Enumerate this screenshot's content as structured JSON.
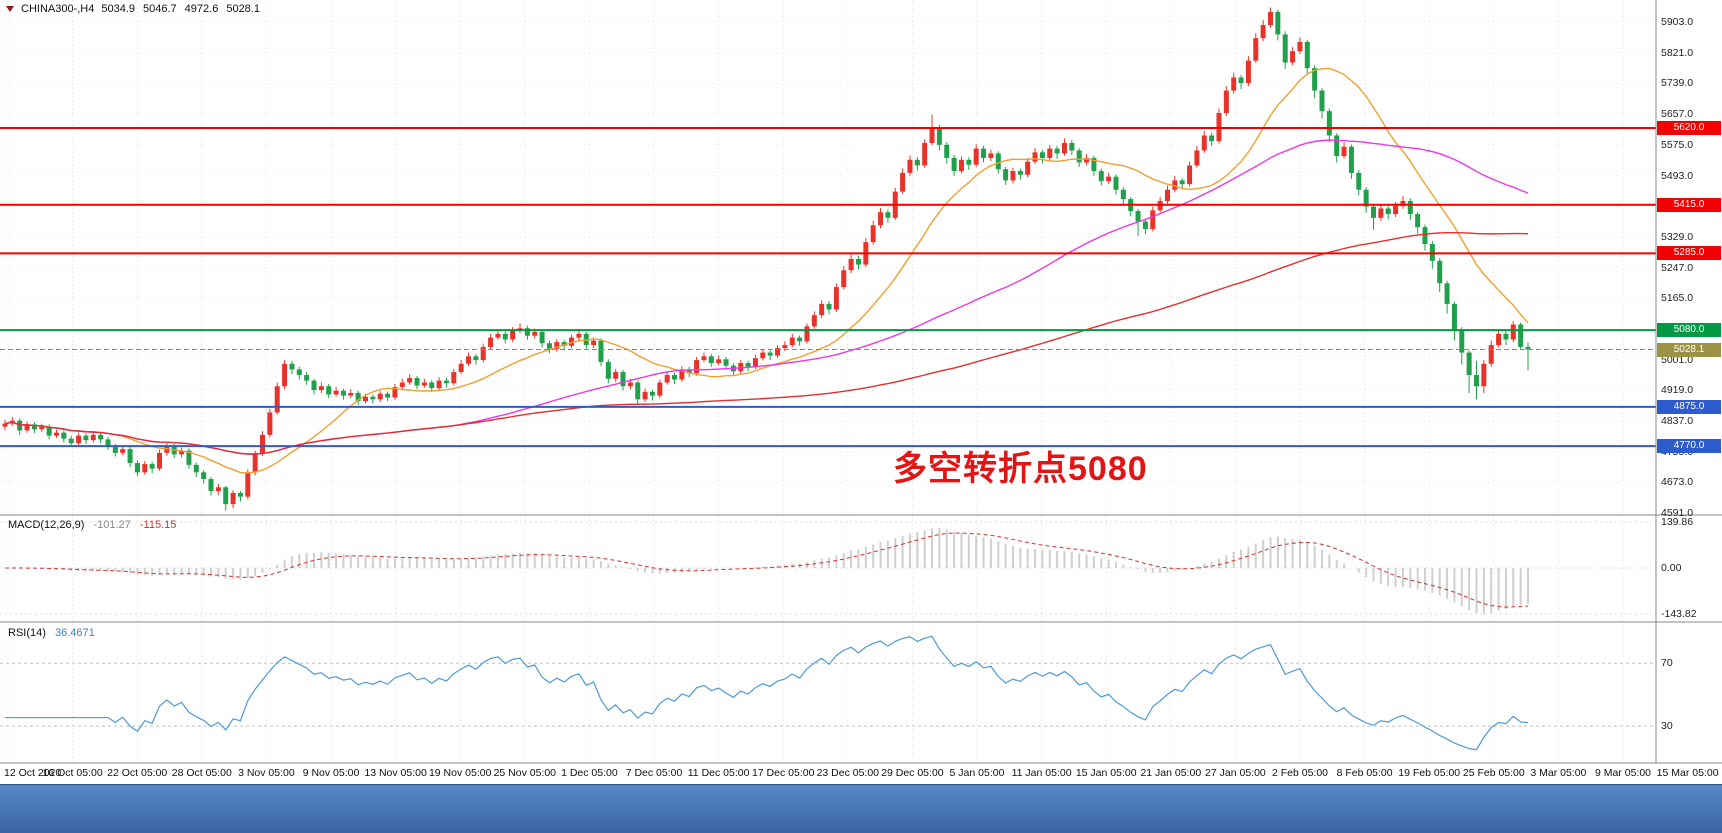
{
  "window": {
    "symbol": "CHINA300-",
    "timeframe": "H4",
    "symbol_label": "CHINA300-,H4",
    "open": "5034.9",
    "high": "5046.7",
    "low": "4972.6",
    "close": "5028.1"
  },
  "annotation": {
    "text": "多空转折点5080",
    "color": "#e21414"
  },
  "main_panel": {
    "axis_labels": [
      "5903.0",
      "5821.0",
      "5739.0",
      "5657.0",
      "5575.0",
      "5493.0",
      "5411.0",
      "5329.0",
      "5247.0",
      "5165.0",
      "5083.0",
      "5001.0",
      "4919.0",
      "4837.0",
      "4755.0",
      "4673.0",
      "4591.0"
    ],
    "levels": [
      {
        "label": "5620.0",
        "value": 5620,
        "color": "#f20000",
        "current": false
      },
      {
        "label": "5415.0",
        "value": 5415,
        "color": "#f20000",
        "current": false
      },
      {
        "label": "5285.0",
        "value": 5285,
        "color": "#f20000",
        "current": false
      },
      {
        "label": "5080.0",
        "value": 5080,
        "color": "#009944",
        "current": false
      },
      {
        "label": "5028.1",
        "value": 5028.1,
        "color": "#9c9246",
        "current": true
      },
      {
        "label": "4875.0",
        "value": 4875,
        "color": "#2e5bcd",
        "current": false
      },
      {
        "label": "4770.0",
        "value": 4770,
        "color": "#2e5bcd",
        "current": false
      }
    ]
  },
  "macd_panel": {
    "label": "MACD(12,26,9)",
    "value_main": "-101.27",
    "value_signal": "-115.15",
    "axis_labels": [
      "139.86",
      "0.00",
      "-143.82"
    ]
  },
  "rsi_panel": {
    "label": "RSI(14)",
    "value": "36.4671",
    "level_labels": [
      "70",
      "30"
    ],
    "level_values": [
      70,
      30
    ]
  },
  "time_axis": [
    "12 Oct 2020",
    "16 Oct 05:00",
    "22 Oct 05:00",
    "28 Oct 05:00",
    "3 Nov 05:00",
    "9 Nov 05:00",
    "13 Nov 05:00",
    "19 Nov 05:00",
    "25 Nov 05:00",
    "1 Dec 05:00",
    "7 Dec 05:00",
    "11 Dec 05:00",
    "17 Dec 05:00",
    "23 Dec 05:00",
    "29 Dec 05:00",
    "5 Jan 05:00",
    "11 Jan 05:00",
    "15 Jan 05:00",
    "21 Jan 05:00",
    "27 Jan 05:00",
    "2 Feb 05:00",
    "8 Feb 05:00",
    "19 Feb 05:00",
    "25 Feb 05:00",
    "3 Mar 05:00",
    "9 Mar 05:00",
    "15 Mar 05:00"
  ],
  "colors": {
    "bull": "#e8332a",
    "bear": "#20a04a",
    "grid": "#e2e2e2",
    "separator": "#8a8a8a",
    "macd_hist": "#cfcfcf",
    "macd_signal": "#d03030",
    "rsi_line": "#4e9ad4",
    "rsi_level": "#c0c0c0",
    "taskbar": "#4a7ab8"
  },
  "chart_data": {
    "type": "candlestick",
    "symbol": "CHINA300-",
    "timeframe": "H4",
    "price_range": [
      4586,
      5962
    ],
    "moving_averages": [
      {
        "name": "ma-fast",
        "period": 16,
        "color": "#f0a030"
      },
      {
        "name": "ma-mid",
        "period": 56,
        "color": "#e838e8"
      },
      {
        "name": "ma-slow",
        "period": 130,
        "color": "#e03030"
      }
    ],
    "indicators": {
      "macd": {
        "fast": 12,
        "slow": 26,
        "signal": 9
      },
      "rsi": {
        "period": 14
      }
    },
    "ohlc": [
      [
        4822,
        4840,
        4812,
        4830
      ],
      [
        4830,
        4848,
        4824,
        4838
      ],
      [
        4838,
        4844,
        4800,
        4812
      ],
      [
        4812,
        4836,
        4806,
        4828
      ],
      [
        4828,
        4834,
        4805,
        4815
      ],
      [
        4815,
        4830,
        4808,
        4822
      ],
      [
        4822,
        4828,
        4788,
        4798
      ],
      [
        4798,
        4814,
        4792,
        4806
      ],
      [
        4806,
        4812,
        4780,
        4790
      ],
      [
        4790,
        4798,
        4768,
        4778
      ],
      [
        4778,
        4806,
        4772,
        4798
      ],
      [
        4798,
        4804,
        4776,
        4786
      ],
      [
        4786,
        4808,
        4780,
        4800
      ],
      [
        4800,
        4806,
        4778,
        4788
      ],
      [
        4788,
        4794,
        4760,
        4770
      ],
      [
        4770,
        4776,
        4742,
        4752
      ],
      [
        4752,
        4770,
        4746,
        4762
      ],
      [
        4762,
        4768,
        4714,
        4725
      ],
      [
        4725,
        4732,
        4690,
        4700
      ],
      [
        4700,
        4730,
        4694,
        4722
      ],
      [
        4722,
        4728,
        4698,
        4710
      ],
      [
        4710,
        4760,
        4704,
        4752
      ],
      [
        4752,
        4780,
        4744,
        4770
      ],
      [
        4770,
        4776,
        4738,
        4748
      ],
      [
        4748,
        4766,
        4740,
        4758
      ],
      [
        4758,
        4764,
        4710,
        4720
      ],
      [
        4720,
        4726,
        4688,
        4700
      ],
      [
        4700,
        4706,
        4670,
        4682
      ],
      [
        4682,
        4688,
        4638,
        4650
      ],
      [
        4650,
        4670,
        4640,
        4660
      ],
      [
        4660,
        4664,
        4598,
        4615
      ],
      [
        4615,
        4652,
        4604,
        4645
      ],
      [
        4645,
        4650,
        4622,
        4635
      ],
      [
        4635,
        4708,
        4628,
        4700
      ],
      [
        4700,
        4758,
        4692,
        4750
      ],
      [
        4750,
        4810,
        4744,
        4800
      ],
      [
        4800,
        4870,
        4794,
        4860
      ],
      [
        4860,
        4940,
        4854,
        4930
      ],
      [
        4930,
        5000,
        4922,
        4990
      ],
      [
        4990,
        4998,
        4962,
        4975
      ],
      [
        4975,
        4982,
        4948,
        4960
      ],
      [
        4960,
        4968,
        4934,
        4945
      ],
      [
        4945,
        4950,
        4908,
        4920
      ],
      [
        4920,
        4940,
        4912,
        4930
      ],
      [
        4930,
        4936,
        4898,
        4908
      ],
      [
        4908,
        4928,
        4902,
        4918
      ],
      [
        4918,
        4924,
        4894,
        4905
      ],
      [
        4905,
        4922,
        4898,
        4912
      ],
      [
        4912,
        4918,
        4880,
        4890
      ],
      [
        4890,
        4910,
        4884,
        4902
      ],
      [
        4902,
        4908,
        4884,
        4895
      ],
      [
        4895,
        4918,
        4888,
        4910
      ],
      [
        4910,
        4916,
        4890,
        4900
      ],
      [
        4900,
        4936,
        4894,
        4928
      ],
      [
        4928,
        4950,
        4922,
        4940
      ],
      [
        4940,
        4962,
        4934,
        4952
      ],
      [
        4952,
        4958,
        4922,
        4932
      ],
      [
        4932,
        4950,
        4926,
        4940
      ],
      [
        4940,
        4946,
        4914,
        4925
      ],
      [
        4925,
        4954,
        4918,
        4945
      ],
      [
        4945,
        4952,
        4926,
        4938
      ],
      [
        4938,
        4976,
        4932,
        4968
      ],
      [
        4968,
        5000,
        4962,
        4990
      ],
      [
        4990,
        5020,
        4984,
        5010
      ],
      [
        5010,
        5016,
        4988,
        5000
      ],
      [
        5000,
        5044,
        4994,
        5035
      ],
      [
        5035,
        5070,
        5028,
        5060
      ],
      [
        5060,
        5082,
        5054,
        5070
      ],
      [
        5070,
        5076,
        5044,
        5055
      ],
      [
        5055,
        5088,
        5048,
        5078
      ],
      [
        5078,
        5098,
        5072,
        5085
      ],
      [
        5085,
        5092,
        5054,
        5065
      ],
      [
        5065,
        5084,
        5058,
        5075
      ],
      [
        5075,
        5080,
        5034,
        5045
      ],
      [
        5045,
        5052,
        5018,
        5030
      ],
      [
        5030,
        5056,
        5022,
        5048
      ],
      [
        5048,
        5054,
        5026,
        5038
      ],
      [
        5038,
        5068,
        5032,
        5060
      ],
      [
        5060,
        5080,
        5052,
        5070
      ],
      [
        5070,
        5076,
        5028,
        5040
      ],
      [
        5040,
        5060,
        5032,
        5052
      ],
      [
        5052,
        5058,
        4984,
        4995
      ],
      [
        4995,
        5002,
        4938,
        4950
      ],
      [
        4950,
        4976,
        4942,
        4968
      ],
      [
        4968,
        4974,
        4918,
        4930
      ],
      [
        4930,
        4950,
        4922,
        4940
      ],
      [
        4940,
        4946,
        4882,
        4895
      ],
      [
        4895,
        4924,
        4888,
        4915
      ],
      [
        4915,
        4920,
        4892,
        4905
      ],
      [
        4905,
        4948,
        4898,
        4940
      ],
      [
        4940,
        4970,
        4934,
        4960
      ],
      [
        4960,
        4966,
        4936,
        4948
      ],
      [
        4948,
        4984,
        4942,
        4975
      ],
      [
        4975,
        4982,
        4954,
        4965
      ],
      [
        4965,
        5008,
        4958,
        5000
      ],
      [
        5000,
        5020,
        4994,
        5010
      ],
      [
        5010,
        5016,
        4982,
        4992
      ],
      [
        4992,
        5012,
        4986,
        5002
      ],
      [
        5002,
        5008,
        4974,
        4985
      ],
      [
        4985,
        4992,
        4958,
        4970
      ],
      [
        4970,
        5000,
        4964,
        4992
      ],
      [
        4992,
        4998,
        4970,
        4982
      ],
      [
        4982,
        5014,
        4976,
        5005
      ],
      [
        5005,
        5030,
        4999,
        5020
      ],
      [
        5020,
        5026,
        5000,
        5012
      ],
      [
        5012,
        5040,
        5006,
        5032
      ],
      [
        5032,
        5050,
        5024,
        5040
      ],
      [
        5040,
        5070,
        5034,
        5060
      ],
      [
        5060,
        5066,
        5038,
        5050
      ],
      [
        5050,
        5098,
        5044,
        5090
      ],
      [
        5090,
        5130,
        5084,
        5120
      ],
      [
        5120,
        5160,
        5112,
        5150
      ],
      [
        5150,
        5158,
        5122,
        5135
      ],
      [
        5135,
        5205,
        5128,
        5195
      ],
      [
        5195,
        5252,
        5188,
        5240
      ],
      [
        5240,
        5282,
        5232,
        5270
      ],
      [
        5270,
        5278,
        5242,
        5255
      ],
      [
        5255,
        5326,
        5248,
        5315
      ],
      [
        5315,
        5372,
        5308,
        5360
      ],
      [
        5360,
        5406,
        5352,
        5395
      ],
      [
        5395,
        5402,
        5366,
        5380
      ],
      [
        5380,
        5460,
        5374,
        5450
      ],
      [
        5450,
        5512,
        5444,
        5500
      ],
      [
        5500,
        5546,
        5492,
        5535
      ],
      [
        5535,
        5542,
        5506,
        5520
      ],
      [
        5520,
        5590,
        5514,
        5580
      ],
      [
        5580,
        5655,
        5574,
        5620
      ],
      [
        5620,
        5628,
        5560,
        5575
      ],
      [
        5575,
        5582,
        5525,
        5540
      ],
      [
        5540,
        5548,
        5492,
        5505
      ],
      [
        5505,
        5544,
        5498,
        5535
      ],
      [
        5535,
        5542,
        5508,
        5522
      ],
      [
        5522,
        5576,
        5516,
        5565
      ],
      [
        5565,
        5572,
        5528,
        5540
      ],
      [
        5540,
        5562,
        5532,
        5552
      ],
      [
        5552,
        5558,
        5498,
        5510
      ],
      [
        5510,
        5516,
        5468,
        5480
      ],
      [
        5480,
        5514,
        5472,
        5505
      ],
      [
        5505,
        5512,
        5482,
        5495
      ],
      [
        5495,
        5540,
        5488,
        5530
      ],
      [
        5530,
        5566,
        5524,
        5555
      ],
      [
        5555,
        5562,
        5526,
        5540
      ],
      [
        5540,
        5575,
        5532,
        5565
      ],
      [
        5565,
        5572,
        5538,
        5552
      ],
      [
        5552,
        5592,
        5546,
        5580
      ],
      [
        5580,
        5588,
        5548,
        5560
      ],
      [
        5560,
        5566,
        5516,
        5528
      ],
      [
        5528,
        5550,
        5520,
        5540
      ],
      [
        5540,
        5546,
        5492,
        5505
      ],
      [
        5505,
        5512,
        5466,
        5478
      ],
      [
        5478,
        5500,
        5470,
        5490
      ],
      [
        5490,
        5496,
        5442,
        5455
      ],
      [
        5455,
        5462,
        5416,
        5430
      ],
      [
        5430,
        5436,
        5384,
        5398
      ],
      [
        5398,
        5404,
        5332,
        5370
      ],
      [
        5370,
        5378,
        5336,
        5350
      ],
      [
        5350,
        5410,
        5344,
        5400
      ],
      [
        5400,
        5436,
        5394,
        5425
      ],
      [
        5425,
        5466,
        5418,
        5455
      ],
      [
        5455,
        5492,
        5448,
        5480
      ],
      [
        5480,
        5486,
        5456,
        5470
      ],
      [
        5470,
        5530,
        5464,
        5520
      ],
      [
        5520,
        5572,
        5514,
        5560
      ],
      [
        5560,
        5612,
        5554,
        5600
      ],
      [
        5600,
        5608,
        5572,
        5585
      ],
      [
        5585,
        5672,
        5578,
        5660
      ],
      [
        5660,
        5732,
        5652,
        5720
      ],
      [
        5720,
        5768,
        5712,
        5755
      ],
      [
        5755,
        5762,
        5724,
        5740
      ],
      [
        5740,
        5812,
        5732,
        5800
      ],
      [
        5800,
        5874,
        5794,
        5860
      ],
      [
        5860,
        5908,
        5852,
        5895
      ],
      [
        5895,
        5942,
        5888,
        5930
      ],
      [
        5930,
        5936,
        5854,
        5870
      ],
      [
        5870,
        5878,
        5778,
        5795
      ],
      [
        5795,
        5836,
        5788,
        5825
      ],
      [
        5825,
        5862,
        5818,
        5850
      ],
      [
        5850,
        5856,
        5762,
        5780
      ],
      [
        5780,
        5788,
        5700,
        5720
      ],
      [
        5720,
        5726,
        5645,
        5665
      ],
      [
        5665,
        5672,
        5582,
        5600
      ],
      [
        5600,
        5606,
        5528,
        5545
      ],
      [
        5545,
        5582,
        5538,
        5570
      ],
      [
        5570,
        5576,
        5484,
        5500
      ],
      [
        5500,
        5508,
        5440,
        5455
      ],
      [
        5455,
        5462,
        5394,
        5410
      ],
      [
        5410,
        5418,
        5348,
        5380
      ],
      [
        5380,
        5416,
        5372,
        5405
      ],
      [
        5405,
        5412,
        5376,
        5390
      ],
      [
        5390,
        5422,
        5382,
        5412
      ],
      [
        5412,
        5438,
        5404,
        5425
      ],
      [
        5425,
        5432,
        5374,
        5390
      ],
      [
        5390,
        5396,
        5338,
        5355
      ],
      [
        5355,
        5362,
        5292,
        5310
      ],
      [
        5310,
        5318,
        5244,
        5265
      ],
      [
        5265,
        5272,
        5182,
        5205
      ],
      [
        5205,
        5212,
        5124,
        5150
      ],
      [
        5150,
        5156,
        5052,
        5080
      ],
      [
        5080,
        5088,
        4988,
        5020
      ],
      [
        5020,
        5026,
        4912,
        4960
      ],
      [
        4960,
        4998,
        4895,
        4930
      ],
      [
        4930,
        5000,
        4912,
        4990
      ],
      [
        4990,
        5052,
        4982,
        5040
      ],
      [
        5040,
        5082,
        5034,
        5070
      ],
      [
        5070,
        5078,
        5040,
        5055
      ],
      [
        5055,
        5104,
        5048,
        5095
      ],
      [
        5095,
        5100,
        5028,
        5035
      ],
      [
        5035,
        5047,
        4973,
        5028
      ]
    ]
  }
}
